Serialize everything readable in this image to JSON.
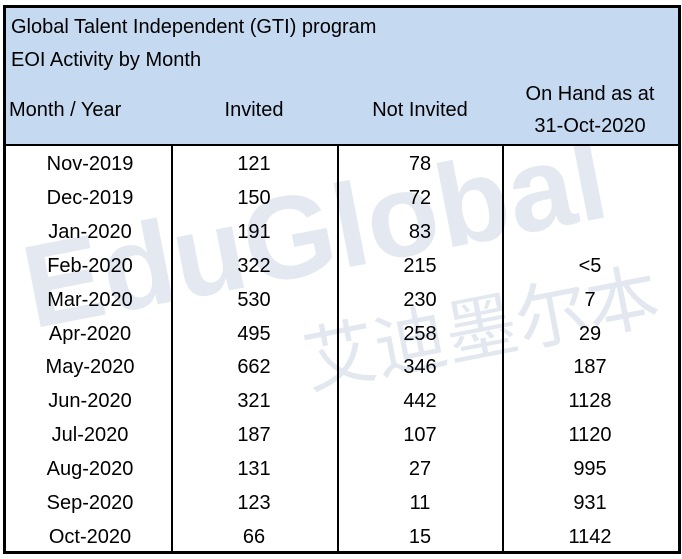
{
  "header": {
    "title": "Global Talent Independent (GTI) program",
    "subtitle": "EOI Activity by Month"
  },
  "table": {
    "columns": [
      "Month / Year",
      "Invited",
      "Not Invited",
      "On Hand as at",
      "31-Oct-2020"
    ],
    "rows": [
      [
        "Nov-2019",
        121,
        78
      ],
      [
        "Dec-2019",
        150,
        72
      ],
      [
        "Jan-2020",
        191,
        83
      ],
      [
        "Feb-2020",
        322,
        215,
        "<5"
      ],
      [
        "Mar-2020",
        530,
        230,
        7
      ],
      [
        "Apr-2020",
        495,
        258,
        29
      ],
      [
        "May-2020",
        662,
        346,
        187
      ],
      [
        "Jun-2020",
        321,
        442,
        1128
      ],
      [
        "Jul-2020",
        187,
        107,
        1120
      ],
      [
        "Aug-2020",
        131,
        27,
        995
      ],
      [
        "Sep-2020",
        123,
        11,
        931
      ],
      [
        "Oct-2020",
        66,
        15,
        1142
      ]
    ]
  },
  "watermark": {
    "latin": "EduGlobal",
    "chinese": "艾迪墨尔本"
  }
}
